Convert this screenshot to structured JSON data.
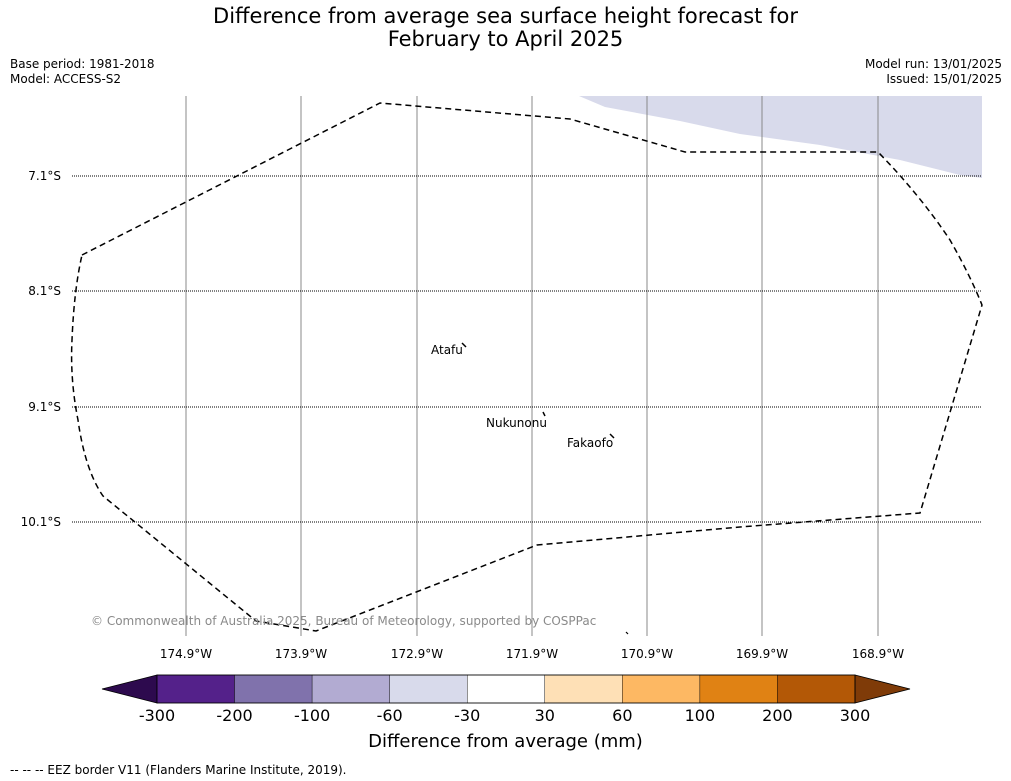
{
  "title": {
    "line1": "Difference from average sea surface height forecast for",
    "line2": "February to April 2025"
  },
  "info_left": {
    "base_period": "Base period: 1981-2018",
    "model": "Model: ACCESS-S2"
  },
  "info_right": {
    "model_run": "Model run: 13/01/2025",
    "issued": "Issued: 15/01/2025"
  },
  "map": {
    "lat_labels": [
      "7.1°S",
      "8.1°S",
      "9.1°S",
      "10.1°S"
    ],
    "lon_labels": [
      "174.9°W",
      "173.9°W",
      "172.9°W",
      "171.9°W",
      "170.9°W",
      "169.9°W",
      "168.9°W"
    ],
    "places": {
      "atafu": "Atafu",
      "nukunonu": "Nukunonu",
      "fakaofo": "Fakaofo"
    },
    "shaded_region_category": "-60 to -30",
    "eez_border_style": "dashed",
    "copyright": "© Commonwealth of Australia 2025, Bureau of Meteorology, supported by COSPPac"
  },
  "colorbar": {
    "ticks": [
      "-300",
      "-200",
      "-100",
      "-60",
      "-30",
      "30",
      "60",
      "100",
      "200",
      "300"
    ],
    "colors": [
      "#2d0a4e",
      "#54218a",
      "#8072ac",
      "#b2abd2",
      "#d8daeb",
      "#ffffff",
      "#fee0b6",
      "#fdb863",
      "#e08214",
      "#b35806",
      "#7f3b08"
    ],
    "label": "Difference from average (mm)"
  },
  "legend_note": "--  --  -- EEZ border V11 (Flanders Marine Institute, 2019)."
}
